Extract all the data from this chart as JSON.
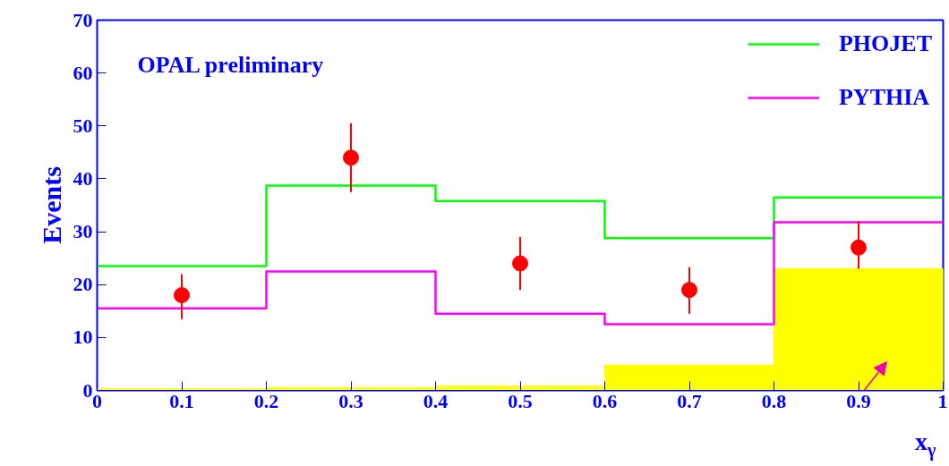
{
  "chart_data": {
    "type": "histogram",
    "xlabel": "x$_{γ}$",
    "ylabel": "Events",
    "annotations": [
      "OPAL preliminary"
    ],
    "bins": [
      0,
      0.2,
      0.4,
      0.6,
      0.8,
      1.0
    ],
    "series": [
      {
        "type": "bar",
        "color": "#ffff00",
        "x": [
          0.1,
          0.3,
          0.5,
          0.7,
          0.9
        ],
        "values": [
          0.3,
          0.5,
          0.8,
          4.8,
          23
        ]
      },
      {
        "name": "PHOJET",
        "color": "#00ff00",
        "values": [
          23.5,
          38.7,
          35.8,
          28.8,
          36.5
        ]
      },
      {
        "name": "PYTHIA",
        "color": "#ff00ff",
        "values": [
          15.5,
          22.5,
          14.5,
          12.5,
          31.8
        ]
      },
      {
        "type": "scatter",
        "color": "#ff0000",
        "x": [
          0.1,
          0.3,
          0.5,
          0.7,
          0.9
        ],
        "values": [
          18,
          44,
          24,
          19,
          27
        ],
        "errors": [
          [
            13.5,
            22
          ],
          [
            37.5,
            50.5
          ],
          [
            19,
            29
          ],
          [
            14.5,
            23.3
          ],
          [
            23,
            32
          ]
        ]
      }
    ],
    "xlim": [
      0,
      1
    ],
    "ylim": [
      0,
      70
    ],
    "xticks": [
      0,
      0.1,
      0.2,
      0.3,
      0.4,
      0.5,
      0.6,
      0.7,
      0.8,
      0.9,
      1
    ],
    "yticks": [
      0,
      10,
      20,
      30,
      40,
      50,
      60,
      70
    ],
    "marker": "circle",
    "legend": "top right",
    "grid": false
  }
}
